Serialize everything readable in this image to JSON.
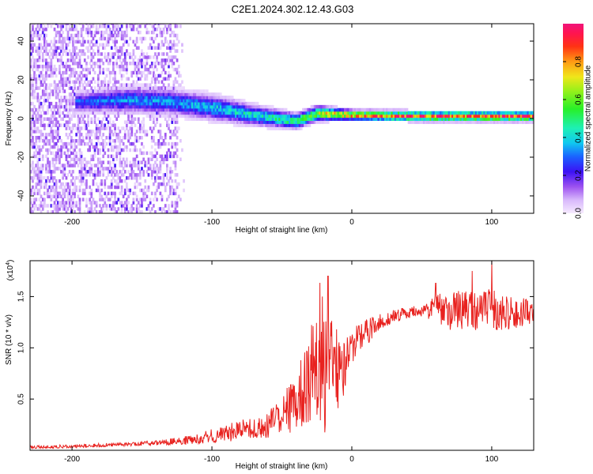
{
  "figure": {
    "title": "C2E1.2024.302.12.43.G03"
  },
  "chart_data": [
    {
      "type": "heatmap",
      "name": "spectrogram",
      "xlabel": "Height of straight line (km)",
      "ylabel": "Frequency (Hz)",
      "xlim": [
        -230,
        130
      ],
      "ylim": [
        -49,
        49
      ],
      "xticks": [
        -200,
        -100,
        0,
        100
      ],
      "yticks": [
        -40,
        -20,
        0,
        20,
        40
      ],
      "colorbar": {
        "label": "Normalized spectral amplitude",
        "range": [
          0,
          1
        ],
        "ticks": [
          0.0,
          0.2,
          0.4,
          0.6,
          0.8
        ],
        "tick_labels": [
          "0.0",
          "0.2",
          "0.4",
          "0.6",
          "0.8"
        ]
      },
      "signal_track": [
        {
          "x": -190,
          "center_hz": 8,
          "halfwidth_hz": 4,
          "amplitude": 0.3
        },
        {
          "x": -160,
          "center_hz": 9,
          "halfwidth_hz": 5,
          "amplitude": 0.35
        },
        {
          "x": -130,
          "center_hz": 8,
          "halfwidth_hz": 5,
          "amplitude": 0.35
        },
        {
          "x": -100,
          "center_hz": 5,
          "halfwidth_hz": 5,
          "amplitude": 0.4
        },
        {
          "x": -70,
          "center_hz": 1,
          "halfwidth_hz": 4,
          "amplitude": 0.45
        },
        {
          "x": -40,
          "center_hz": -2,
          "halfwidth_hz": 3,
          "amplitude": 0.55
        },
        {
          "x": -25,
          "center_hz": 2,
          "halfwidth_hz": 3,
          "amplitude": 0.7
        },
        {
          "x": 0,
          "center_hz": 1,
          "halfwidth_hz": 2,
          "amplitude": 0.85
        },
        {
          "x": 50,
          "center_hz": 0.5,
          "halfwidth_hz": 2,
          "amplitude": 0.95
        },
        {
          "x": 130,
          "center_hz": 0.5,
          "halfwidth_hz": 2,
          "amplitude": 0.95
        }
      ],
      "noise_region_xlim": [
        -230,
        -125
      ]
    },
    {
      "type": "line",
      "name": "snr",
      "xlabel": "Height of straight line (km)",
      "ylabel": "SNR (10 * v/v)",
      "scale_label": "(x10",
      "scale_exponent": "4",
      "xlim": [
        -230,
        130
      ],
      "ylim": [
        0,
        1.85
      ],
      "xticks": [
        -200,
        -100,
        0,
        100
      ],
      "yticks": [
        0.5,
        1.0,
        1.5
      ],
      "ytick_labels": [
        "0.5",
        "1.0",
        "1.5"
      ],
      "color": "#e8221f",
      "series": [
        {
          "name": "SNR",
          "envelope": {
            "x": [
              -230,
              -200,
              -160,
              -130,
              -110,
              -100,
              -90,
              -80,
              -70,
              -60,
              -50,
              -40,
              -35,
              -30,
              -25,
              -20,
              -15,
              -10,
              -5,
              0,
              10,
              20,
              30,
              40,
              50,
              60,
              70,
              80,
              90,
              100,
              110,
              120,
              130
            ],
            "y": [
              0.03,
              0.04,
              0.06,
              0.08,
              0.11,
              0.14,
              0.16,
              0.2,
              0.2,
              0.24,
              0.35,
              0.48,
              0.55,
              0.65,
              0.75,
              0.75,
              0.75,
              0.8,
              0.85,
              1.0,
              1.15,
              1.25,
              1.3,
              1.35,
              1.35,
              1.38,
              1.35,
              1.38,
              1.36,
              1.38,
              1.33,
              1.35,
              1.33
            ]
          },
          "noise": {
            "x": [
              -230,
              -150,
              -120,
              -100,
              -80,
              -60,
              -40,
              -30,
              -20,
              -10,
              0,
              20,
              50,
              60,
              80,
              100,
              130
            ],
            "amp": [
              0.015,
              0.02,
              0.04,
              0.07,
              0.1,
              0.12,
              0.3,
              0.45,
              0.65,
              0.4,
              0.2,
              0.08,
              0.05,
              0.15,
              0.2,
              0.2,
              0.12
            ]
          },
          "peaks": [
            {
              "x": -17,
              "y": 1.7
            },
            {
              "x": -21,
              "y": 1.5
            },
            {
              "x": 100,
              "y": 1.85
            },
            {
              "x": 86,
              "y": 1.75
            },
            {
              "x": 60,
              "y": 1.63
            }
          ]
        }
      ]
    }
  ]
}
